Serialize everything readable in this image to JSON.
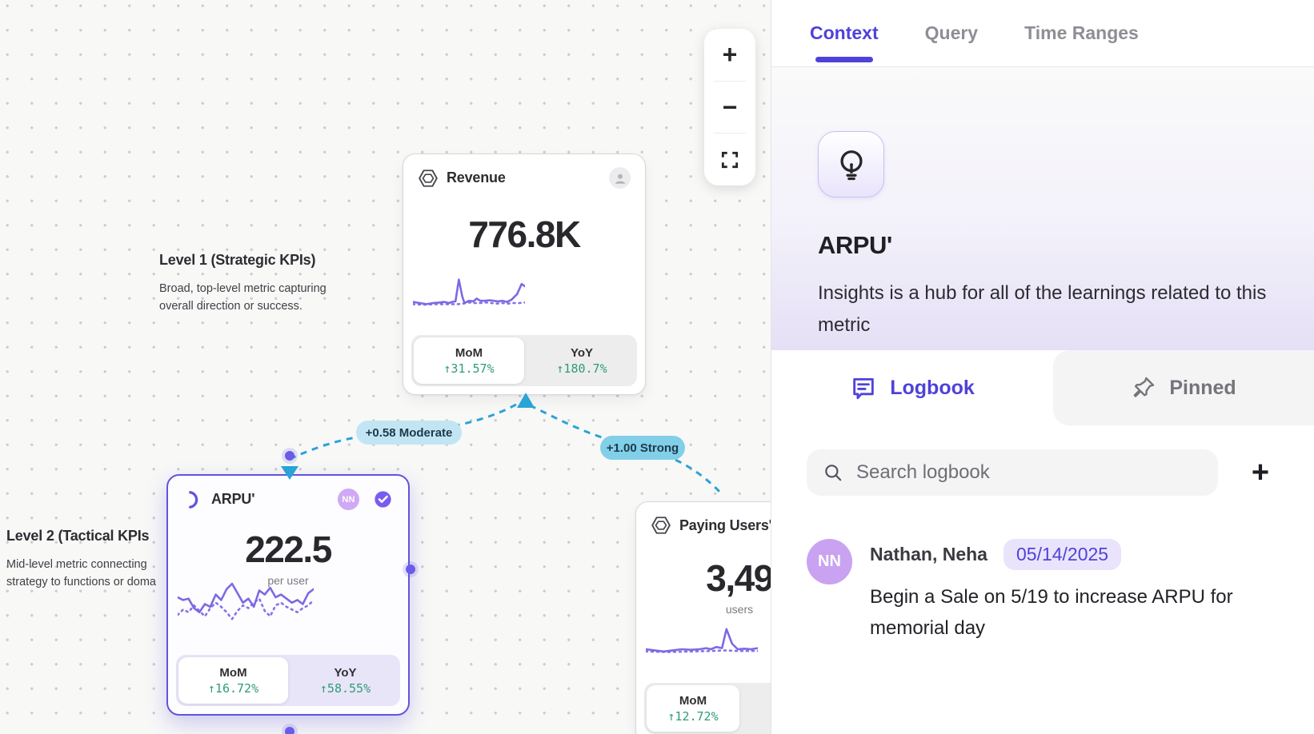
{
  "canvas": {
    "zoom_controls": {
      "zoom_in": "+",
      "zoom_out": "−"
    },
    "levels": [
      {
        "title": "Level 1 (Strategic KPIs)",
        "description": "Broad, top-level metric capturing overall direction or success."
      },
      {
        "title": "Level 2 (Tactical KPIs",
        "description": "Mid-level metric connecting strategy to functions or doma"
      }
    ],
    "edges": [
      {
        "label": "+0.58 Moderate",
        "strength": "moderate"
      },
      {
        "label": "+1.00 Strong",
        "strength": "strong"
      }
    ],
    "cards": {
      "revenue": {
        "title": "Revenue",
        "value": "776.8K",
        "mom_label": "MoM",
        "mom_value": "↑31.57%",
        "yoy_label": "YoY",
        "yoy_value": "↑180.7%",
        "sparkline": {
          "solid": [
            [
              0,
              29
            ],
            [
              6,
              30
            ],
            [
              12,
              31
            ],
            [
              18,
              30
            ],
            [
              24,
              29.5
            ],
            [
              28,
              29
            ],
            [
              32,
              30
            ],
            [
              35,
              29
            ],
            [
              38,
              28.5
            ],
            [
              41,
              9
            ],
            [
              44,
              24
            ],
            [
              46,
              30
            ],
            [
              50,
              28
            ],
            [
              54,
              28.5
            ],
            [
              57,
              26
            ],
            [
              60,
              28
            ],
            [
              64,
              28
            ],
            [
              68,
              27.5
            ],
            [
              72,
              28
            ],
            [
              76,
              28.5
            ],
            [
              80,
              28
            ],
            [
              84,
              29
            ],
            [
              88,
              27
            ],
            [
              93,
              22
            ],
            [
              97,
              13
            ],
            [
              100,
              15
            ]
          ],
          "dotted": [
            [
              0,
              31
            ],
            [
              10,
              31.5
            ],
            [
              20,
              31
            ],
            [
              30,
              31
            ],
            [
              40,
              31
            ],
            [
              45,
              30.5
            ],
            [
              50,
              29.5
            ],
            [
              55,
              30
            ],
            [
              60,
              30
            ],
            [
              65,
              29.5
            ],
            [
              70,
              30
            ],
            [
              75,
              30.5
            ],
            [
              80,
              30
            ],
            [
              85,
              30.5
            ],
            [
              90,
              30
            ],
            [
              95,
              30
            ],
            [
              100,
              29.5
            ]
          ]
        }
      },
      "arpu": {
        "title": "ARPU'",
        "value": "222.5",
        "unit": "per user",
        "avatar_initials": "NN",
        "mom_label": "MoM",
        "mom_value": "↑16.72%",
        "yoy_label": "YoY",
        "yoy_value": "↑58.55%",
        "sparkline": {
          "solid": [
            [
              0,
              20
            ],
            [
              4,
              22
            ],
            [
              8,
              21
            ],
            [
              12,
              28
            ],
            [
              16,
              31
            ],
            [
              20,
              25
            ],
            [
              24,
              27
            ],
            [
              28,
              18
            ],
            [
              32,
              22
            ],
            [
              36,
              14
            ],
            [
              40,
              10
            ],
            [
              44,
              17
            ],
            [
              48,
              24
            ],
            [
              52,
              21
            ],
            [
              56,
              27
            ],
            [
              60,
              15
            ],
            [
              64,
              18
            ],
            [
              68,
              13
            ],
            [
              72,
              20
            ],
            [
              76,
              18
            ],
            [
              80,
              21
            ],
            [
              84,
              24
            ],
            [
              88,
              22
            ],
            [
              92,
              25
            ],
            [
              96,
              17
            ],
            [
              100,
              14
            ]
          ],
          "dotted": [
            [
              0,
              33
            ],
            [
              4,
              29
            ],
            [
              8,
              31
            ],
            [
              12,
              26
            ],
            [
              16,
              30
            ],
            [
              20,
              34
            ],
            [
              24,
              28
            ],
            [
              28,
              24
            ],
            [
              32,
              27
            ],
            [
              36,
              31
            ],
            [
              40,
              36
            ],
            [
              44,
              30
            ],
            [
              48,
              26
            ],
            [
              52,
              28
            ],
            [
              56,
              24
            ],
            [
              60,
              21
            ],
            [
              64,
              30
            ],
            [
              68,
              34
            ],
            [
              72,
              26
            ],
            [
              76,
              24
            ],
            [
              80,
              27
            ],
            [
              84,
              29
            ],
            [
              88,
              31
            ],
            [
              92,
              28
            ],
            [
              96,
              26
            ],
            [
              100,
              22
            ]
          ]
        }
      },
      "paying_users": {
        "title": "Paying Users'",
        "value": "3,49",
        "unit": "users",
        "mom_label": "MoM",
        "mom_value": "↑12.72%",
        "sparkline": {
          "solid": [
            [
              0,
              30
            ],
            [
              8,
              31
            ],
            [
              16,
              32
            ],
            [
              24,
              31
            ],
            [
              32,
              30
            ],
            [
              40,
              30.5
            ],
            [
              48,
              30
            ],
            [
              54,
              29
            ],
            [
              58,
              30
            ],
            [
              63,
              28
            ],
            [
              68,
              29
            ],
            [
              72,
              12
            ],
            [
              77,
              25
            ],
            [
              82,
              30
            ],
            [
              88,
              29.5
            ],
            [
              94,
              30
            ],
            [
              100,
              29
            ]
          ],
          "dotted": [
            [
              0,
              32
            ],
            [
              20,
              32.5
            ],
            [
              40,
              32
            ],
            [
              60,
              31.5
            ],
            [
              72,
              31
            ],
            [
              80,
              31.5
            ],
            [
              100,
              31.5
            ]
          ]
        }
      }
    }
  },
  "panel": {
    "tabs": [
      {
        "label": "Context",
        "active": true
      },
      {
        "label": "Query",
        "active": false
      },
      {
        "label": "Time Ranges",
        "active": false
      }
    ],
    "header": {
      "title": "ARPU'",
      "description": "Insights is a hub for all of the learnings related to this metric"
    },
    "subtabs": {
      "logbook": "Logbook",
      "pinned": "Pinned"
    },
    "search": {
      "placeholder": "Search logbook",
      "add_button": "+"
    },
    "logbook_entries": [
      {
        "avatar_initials": "NN",
        "authors": "Nathan, Neha",
        "date": "05/14/2025",
        "note": "Begin a Sale on 5/19 to increase ARPU for memorial day"
      }
    ]
  },
  "colors": {
    "accent_indigo": "#4f42d9",
    "edge_blue": "#2aa3d6",
    "positive_green": "#2f9c77",
    "sparkline_purple": "#7b6ae4",
    "pill_moderate_bg": "#c2e5f4",
    "pill_strong_bg": "#81cfe9"
  }
}
